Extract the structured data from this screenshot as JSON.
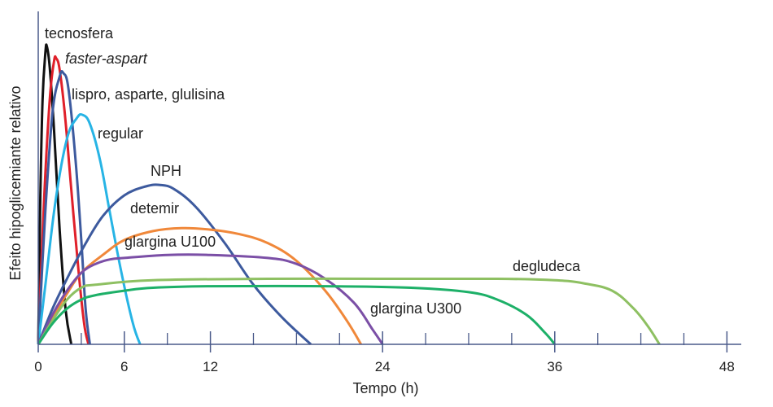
{
  "chart_data": {
    "type": "line",
    "xlabel": "Tempo (h)",
    "ylabel": "Efeito hipoglicemiante relativo",
    "xlim": [
      0,
      49
    ],
    "ylim": [
      0,
      1.0
    ],
    "xticks": [
      0,
      6,
      12,
      24,
      36,
      48
    ],
    "minor_xticks": [
      3,
      6,
      9,
      12,
      15,
      18,
      21,
      24,
      27,
      30,
      33,
      36,
      39,
      42,
      45,
      48
    ],
    "grid": false,
    "legend": "labels placed directly on curves",
    "series": [
      {
        "name": "tecnosfera",
        "color": "#111111",
        "italic": false,
        "x": [
          0,
          0.15,
          0.3,
          0.5,
          0.6,
          0.8,
          1.1,
          1.5,
          1.9,
          2.3
        ],
        "y": [
          0,
          0.5,
          0.82,
          0.98,
          1.0,
          0.93,
          0.72,
          0.38,
          0.12,
          0
        ]
      },
      {
        "name": "faster-aspart",
        "color": "#e0202a",
        "italic": true,
        "x": [
          0,
          0.4,
          0.8,
          1.1,
          1.25,
          1.5,
          1.9,
          2.3,
          2.8,
          3.2,
          3.5
        ],
        "y": [
          0,
          0.48,
          0.82,
          0.95,
          0.96,
          0.92,
          0.75,
          0.52,
          0.25,
          0.07,
          0
        ]
      },
      {
        "name": "lispro, asparte, glulisina",
        "color": "#3d5a9e",
        "italic": false,
        "x": [
          0,
          0.5,
          1.0,
          1.5,
          1.75,
          2.1,
          2.6,
          3.0,
          3.3,
          3.6
        ],
        "y": [
          0,
          0.45,
          0.78,
          0.9,
          0.91,
          0.86,
          0.62,
          0.35,
          0.12,
          0
        ]
      },
      {
        "name": "regular",
        "color": "#27b4e5",
        "italic": false,
        "x": [
          0,
          0.5,
          1.2,
          2.0,
          2.7,
          3.1,
          3.6,
          4.3,
          5.0,
          5.8,
          6.6,
          7.1
        ],
        "y": [
          0,
          0.2,
          0.48,
          0.69,
          0.76,
          0.77,
          0.74,
          0.62,
          0.44,
          0.24,
          0.07,
          0
        ]
      },
      {
        "name": "NPH",
        "color": "#3d5a9e",
        "italic": false,
        "x": [
          0,
          1,
          2,
          3.2,
          4.5,
          6,
          7.5,
          8.5,
          9.5,
          11,
          13,
          15,
          17,
          19
        ],
        "y": [
          0,
          0.12,
          0.22,
          0.33,
          0.43,
          0.5,
          0.53,
          0.535,
          0.52,
          0.46,
          0.34,
          0.2,
          0.09,
          0
        ]
      },
      {
        "name": "detemir",
        "color": "#f0883a",
        "italic": false,
        "x": [
          0,
          1,
          2,
          3,
          4.5,
          6,
          8,
          10,
          12,
          14,
          16,
          18,
          20,
          21.5,
          22.5
        ],
        "y": [
          0,
          0.09,
          0.17,
          0.24,
          0.3,
          0.35,
          0.38,
          0.39,
          0.385,
          0.37,
          0.34,
          0.28,
          0.18,
          0.08,
          0
        ]
      },
      {
        "name": "glargina U100",
        "color": "#7b4fa6",
        "italic": false,
        "x": [
          0,
          1,
          2,
          3,
          4,
          5,
          6,
          9,
          12,
          16,
          18,
          20,
          22,
          23.3,
          24
        ],
        "y": [
          0,
          0.1,
          0.18,
          0.24,
          0.27,
          0.285,
          0.29,
          0.3,
          0.3,
          0.29,
          0.27,
          0.22,
          0.14,
          0.05,
          0
        ]
      },
      {
        "name": "degludeca",
        "color": "#8ec062",
        "italic": false,
        "x": [
          0,
          1,
          2,
          3,
          4,
          8,
          16,
          24,
          32,
          36,
          38,
          40,
          41.5,
          42.5,
          43.3
        ],
        "y": [
          0,
          0.08,
          0.15,
          0.19,
          0.2,
          0.215,
          0.22,
          0.22,
          0.22,
          0.215,
          0.205,
          0.18,
          0.12,
          0.06,
          0
        ]
      },
      {
        "name": "glargina U300",
        "color": "#1db068",
        "italic": false,
        "x": [
          0,
          1,
          2,
          3,
          4,
          6,
          8,
          12,
          20,
          26,
          30,
          32,
          34,
          35.3,
          36
        ],
        "y": [
          0,
          0.07,
          0.12,
          0.15,
          0.165,
          0.18,
          0.19,
          0.195,
          0.195,
          0.19,
          0.175,
          0.15,
          0.1,
          0.04,
          0
        ]
      }
    ]
  }
}
